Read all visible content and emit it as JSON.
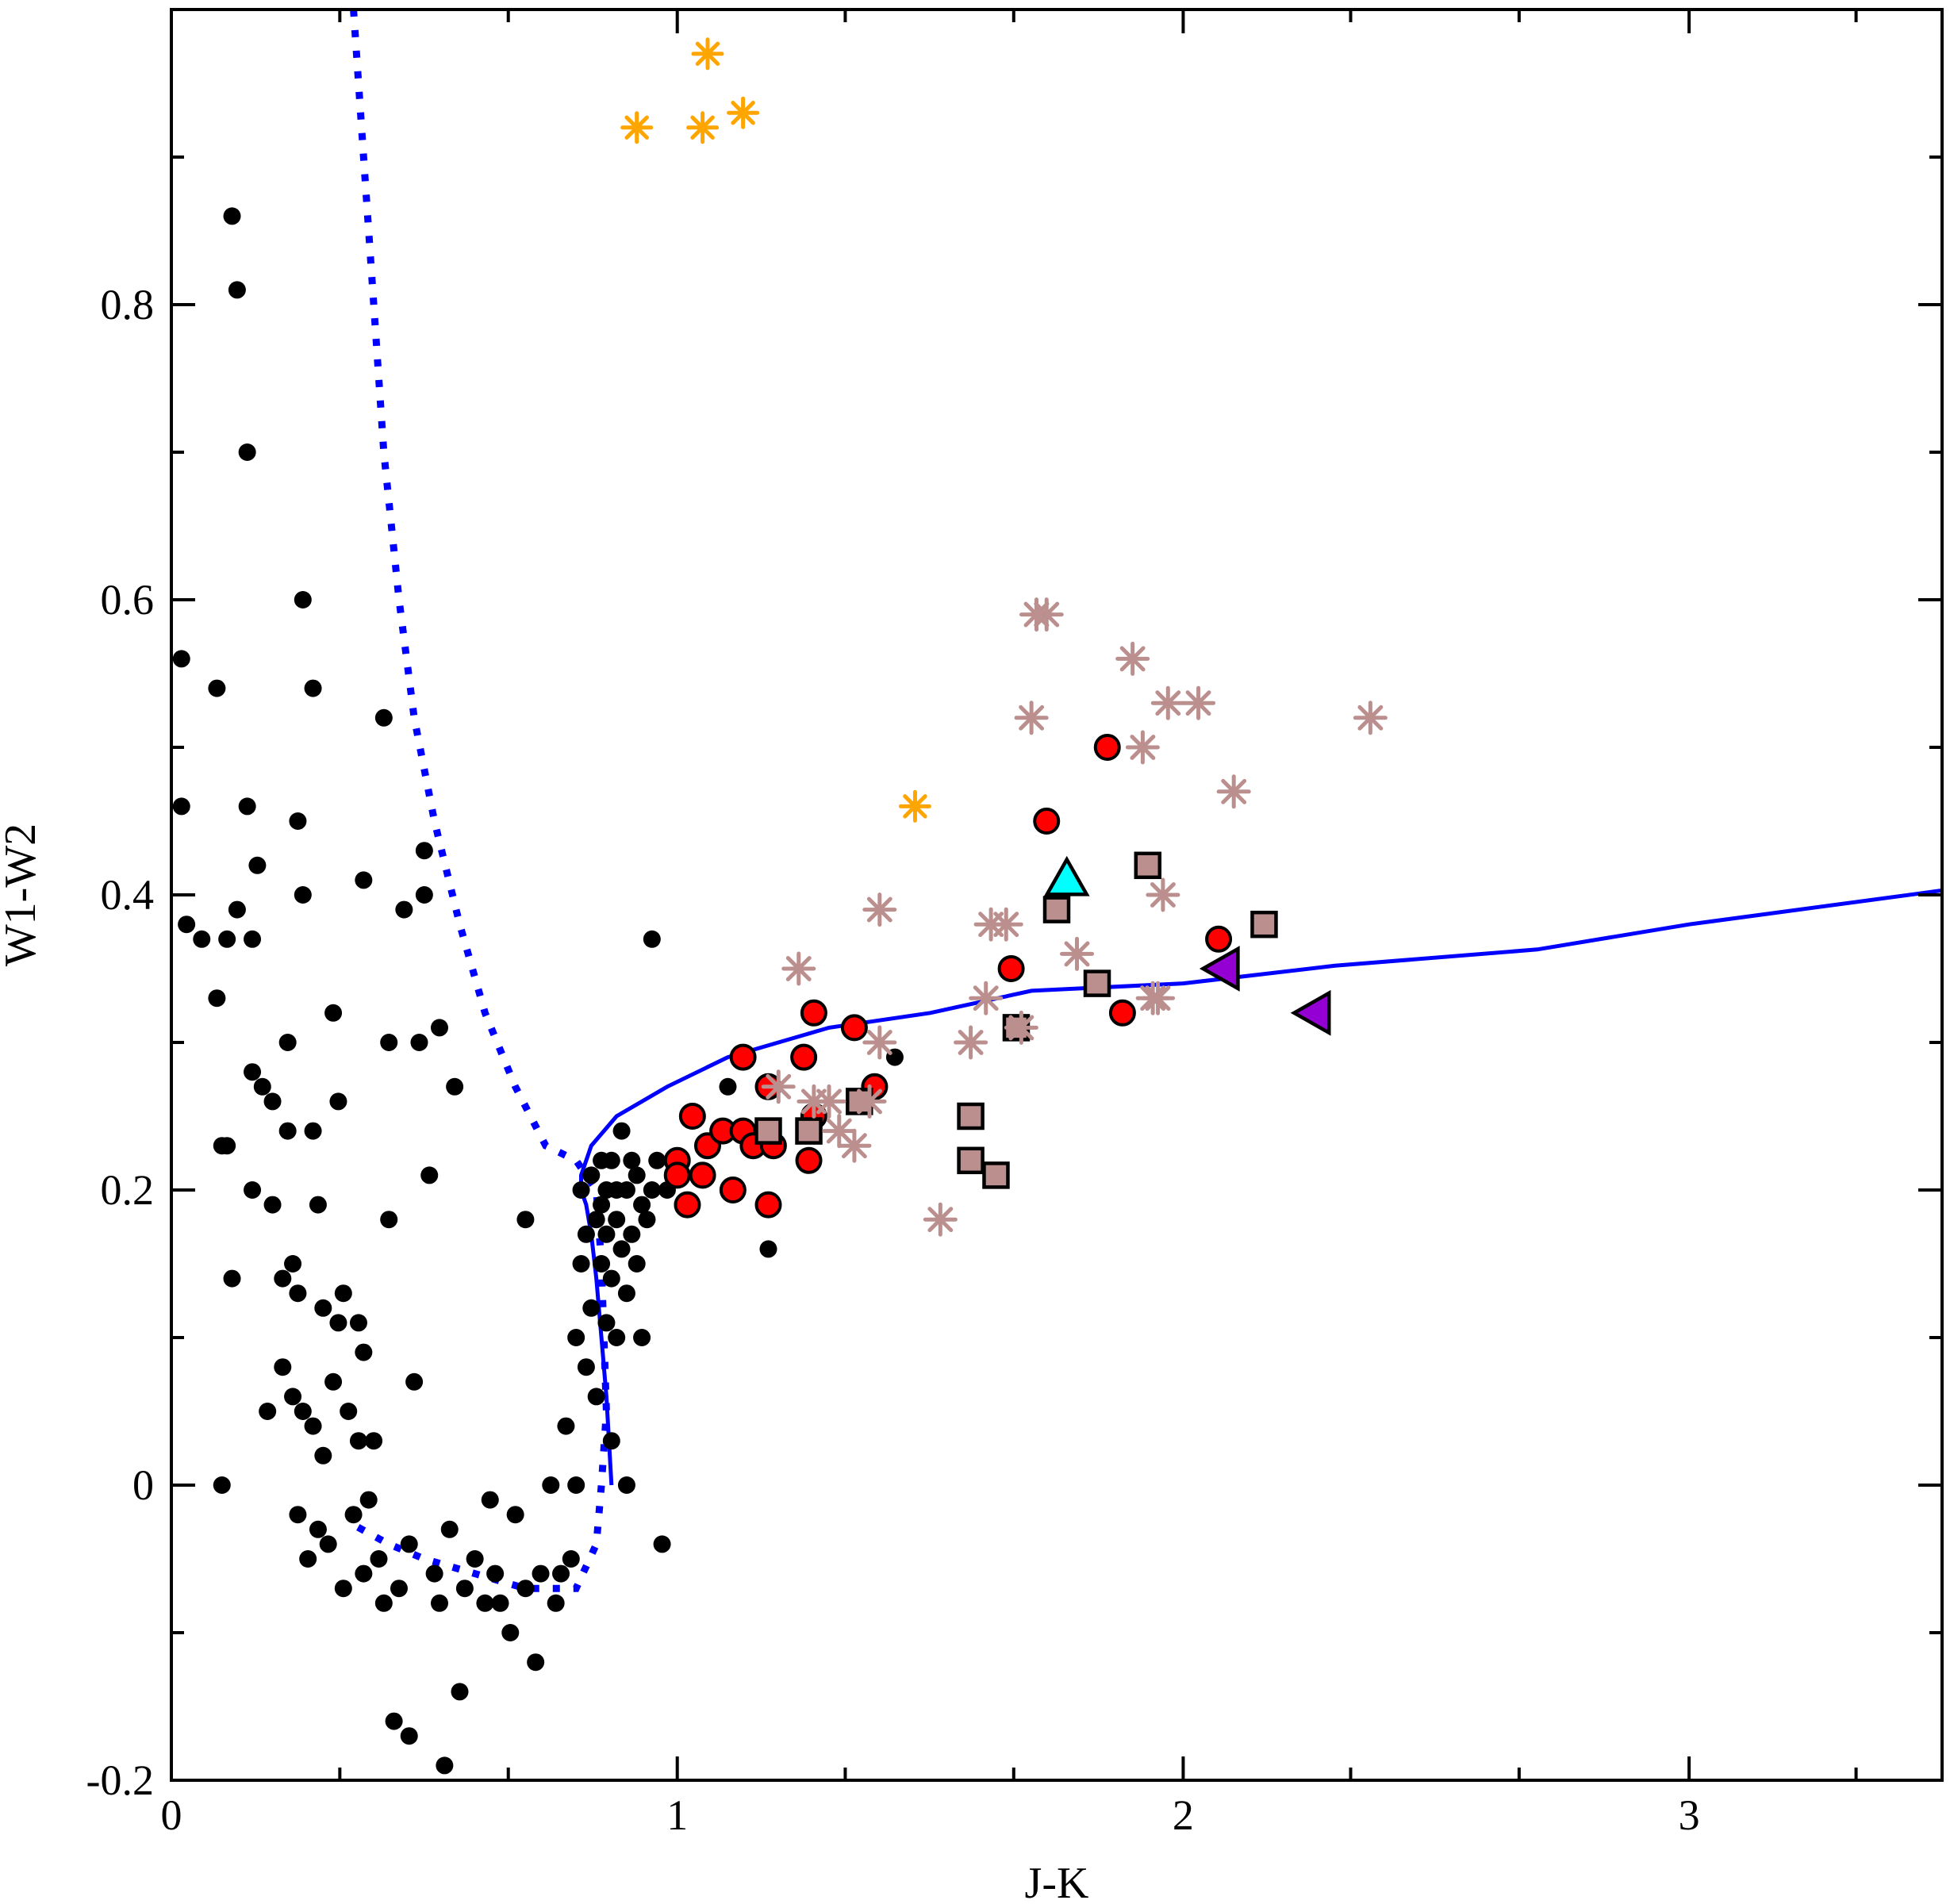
{
  "chart_data": {
    "type": "scatter",
    "title": "",
    "xlabel": "J-K",
    "ylabel": "W1-W2",
    "xlim": [
      0,
      3.5
    ],
    "ylim": [
      -0.2,
      1.0
    ],
    "x_ticks": [
      0,
      1,
      2,
      3
    ],
    "x_tick_labels": [
      "0",
      "1",
      "2",
      "3"
    ],
    "x_minor_step": 0.333,
    "y_ticks": [
      -0.2,
      0,
      0.2,
      0.4,
      0.6,
      0.8
    ],
    "y_tick_labels": [
      "-0.2",
      "0",
      "0.2",
      "0.4",
      "0.6",
      "0.8"
    ],
    "y_minor_step": 0.1,
    "grid": false,
    "legend": "none",
    "colors": {
      "dots": "#000000",
      "red_circles": "#ff0000",
      "brown_squares": "#bc8f8f",
      "brown_stars": "#bc8f8f",
      "orange_stars": "#ffa500",
      "cyan_triangle": "#00ffff",
      "purple_triangles": "#9400d3",
      "curves": "#0000ff"
    },
    "series": [
      {
        "name": "dots",
        "marker": "filled-circle",
        "points": [
          [
            0.02,
            0.46
          ],
          [
            0.02,
            0.56
          ],
          [
            0.03,
            0.38
          ],
          [
            0.06,
            0.37
          ],
          [
            0.09,
            0.54
          ],
          [
            0.09,
            0.33
          ],
          [
            0.1,
            0.23
          ],
          [
            0.1,
            0.0
          ],
          [
            0.11,
            0.23
          ],
          [
            0.11,
            0.37
          ],
          [
            0.12,
            0.14
          ],
          [
            0.12,
            0.86
          ],
          [
            0.13,
            0.81
          ],
          [
            0.13,
            0.39
          ],
          [
            0.15,
            0.7
          ],
          [
            0.15,
            0.46
          ],
          [
            0.16,
            0.37
          ],
          [
            0.16,
            0.28
          ],
          [
            0.16,
            0.2
          ],
          [
            0.17,
            0.42
          ],
          [
            0.18,
            0.27
          ],
          [
            0.19,
            0.05
          ],
          [
            0.2,
            0.26
          ],
          [
            0.2,
            0.19
          ],
          [
            0.22,
            0.14
          ],
          [
            0.22,
            0.08
          ],
          [
            0.23,
            0.3
          ],
          [
            0.23,
            0.24
          ],
          [
            0.24,
            0.15
          ],
          [
            0.24,
            0.06
          ],
          [
            0.25,
            0.45
          ],
          [
            0.25,
            0.13
          ],
          [
            0.25,
            -0.02
          ],
          [
            0.26,
            0.6
          ],
          [
            0.26,
            0.4
          ],
          [
            0.26,
            0.05
          ],
          [
            0.27,
            -0.05
          ],
          [
            0.28,
            0.54
          ],
          [
            0.28,
            0.24
          ],
          [
            0.28,
            0.04
          ],
          [
            0.29,
            0.19
          ],
          [
            0.29,
            -0.03
          ],
          [
            0.3,
            0.12
          ],
          [
            0.3,
            0.02
          ],
          [
            0.31,
            -0.04
          ],
          [
            0.32,
            0.32
          ],
          [
            0.32,
            0.07
          ],
          [
            0.33,
            0.26
          ],
          [
            0.33,
            0.11
          ],
          [
            0.34,
            0.13
          ],
          [
            0.34,
            -0.07
          ],
          [
            0.35,
            0.05
          ],
          [
            0.36,
            -0.02
          ],
          [
            0.37,
            0.11
          ],
          [
            0.37,
            0.03
          ],
          [
            0.38,
            0.41
          ],
          [
            0.38,
            0.09
          ],
          [
            0.38,
            -0.06
          ],
          [
            0.39,
            -0.01
          ],
          [
            0.4,
            0.03
          ],
          [
            0.41,
            -0.05
          ],
          [
            0.42,
            0.52
          ],
          [
            0.42,
            -0.08
          ],
          [
            0.43,
            0.18
          ],
          [
            0.43,
            0.3
          ],
          [
            0.44,
            -0.16
          ],
          [
            0.45,
            -0.07
          ],
          [
            0.46,
            0.39
          ],
          [
            0.47,
            -0.17
          ],
          [
            0.47,
            -0.04
          ],
          [
            0.48,
            0.07
          ],
          [
            0.49,
            0.3
          ],
          [
            0.5,
            0.43
          ],
          [
            0.5,
            0.4
          ],
          [
            0.51,
            0.21
          ],
          [
            0.52,
            -0.06
          ],
          [
            0.53,
            0.31
          ],
          [
            0.53,
            -0.08
          ],
          [
            0.54,
            -0.19
          ],
          [
            0.55,
            -0.03
          ],
          [
            0.56,
            0.27
          ],
          [
            0.57,
            -0.14
          ],
          [
            0.58,
            -0.07
          ],
          [
            0.6,
            -0.05
          ],
          [
            0.62,
            -0.08
          ],
          [
            0.63,
            -0.01
          ],
          [
            0.64,
            -0.06
          ],
          [
            0.65,
            -0.08
          ],
          [
            0.67,
            -0.1
          ],
          [
            0.68,
            -0.02
          ],
          [
            0.7,
            0.18
          ],
          [
            0.7,
            -0.07
          ],
          [
            0.72,
            -0.12
          ],
          [
            0.73,
            -0.06
          ],
          [
            0.75,
            0.0
          ],
          [
            0.76,
            -0.08
          ],
          [
            0.77,
            -0.06
          ],
          [
            0.78,
            0.04
          ],
          [
            0.79,
            -0.05
          ],
          [
            0.8,
            0.0
          ],
          [
            0.8,
            0.1
          ],
          [
            0.81,
            0.15
          ],
          [
            0.81,
            0.2
          ],
          [
            0.82,
            0.08
          ],
          [
            0.82,
            0.17
          ],
          [
            0.83,
            0.12
          ],
          [
            0.83,
            0.21
          ],
          [
            0.84,
            0.18
          ],
          [
            0.84,
            0.06
          ],
          [
            0.85,
            0.15
          ],
          [
            0.85,
            0.19
          ],
          [
            0.85,
            0.22
          ],
          [
            0.86,
            0.11
          ],
          [
            0.86,
            0.17
          ],
          [
            0.86,
            0.2
          ],
          [
            0.87,
            0.03
          ],
          [
            0.87,
            0.14
          ],
          [
            0.87,
            0.22
          ],
          [
            0.88,
            0.18
          ],
          [
            0.88,
            0.1
          ],
          [
            0.88,
            0.2
          ],
          [
            0.89,
            0.16
          ],
          [
            0.89,
            0.24
          ],
          [
            0.9,
            0.13
          ],
          [
            0.9,
            0.2
          ],
          [
            0.9,
            0.0
          ],
          [
            0.91,
            0.17
          ],
          [
            0.91,
            0.22
          ],
          [
            0.92,
            0.15
          ],
          [
            0.92,
            0.21
          ],
          [
            0.93,
            0.19
          ],
          [
            0.93,
            0.1
          ],
          [
            0.94,
            0.18
          ],
          [
            0.95,
            0.2
          ],
          [
            0.95,
            0.37
          ],
          [
            0.96,
            0.22
          ],
          [
            0.97,
            -0.04
          ],
          [
            0.98,
            0.2
          ],
          [
            1.1,
            0.27
          ],
          [
            1.18,
            0.16
          ],
          [
            1.43,
            0.29
          ]
        ]
      },
      {
        "name": "red_circles",
        "marker": "circle-outlined",
        "points": [
          [
            1.0,
            0.22
          ],
          [
            1.0,
            0.21
          ],
          [
            1.02,
            0.19
          ],
          [
            1.03,
            0.25
          ],
          [
            1.05,
            0.21
          ],
          [
            1.06,
            0.23
          ],
          [
            1.09,
            0.24
          ],
          [
            1.11,
            0.2
          ],
          [
            1.13,
            0.29
          ],
          [
            1.13,
            0.24
          ],
          [
            1.15,
            0.23
          ],
          [
            1.18,
            0.27
          ],
          [
            1.18,
            0.19
          ],
          [
            1.19,
            0.23
          ],
          [
            1.25,
            0.29
          ],
          [
            1.26,
            0.22
          ],
          [
            1.27,
            0.25
          ],
          [
            1.27,
            0.32
          ],
          [
            1.35,
            0.31
          ],
          [
            1.39,
            0.27
          ],
          [
            1.66,
            0.35
          ],
          [
            1.73,
            0.45
          ],
          [
            1.85,
            0.5
          ],
          [
            1.88,
            0.32
          ],
          [
            2.07,
            0.37
          ]
        ]
      },
      {
        "name": "brown_squares",
        "marker": "square-outlined",
        "points": [
          [
            1.18,
            0.24
          ],
          [
            1.26,
            0.24
          ],
          [
            1.36,
            0.26
          ],
          [
            1.58,
            0.25
          ],
          [
            1.58,
            0.22
          ],
          [
            1.63,
            0.21
          ],
          [
            1.67,
            0.31
          ],
          [
            1.75,
            0.39
          ],
          [
            1.83,
            0.34
          ],
          [
            1.93,
            0.42
          ],
          [
            2.16,
            0.38
          ]
        ]
      },
      {
        "name": "brown_stars",
        "marker": "asterisk",
        "points": [
          [
            1.2,
            0.27
          ],
          [
            1.24,
            0.35
          ],
          [
            1.27,
            0.26
          ],
          [
            1.3,
            0.26
          ],
          [
            1.32,
            0.24
          ],
          [
            1.35,
            0.23
          ],
          [
            1.38,
            0.26
          ],
          [
            1.4,
            0.39
          ],
          [
            1.4,
            0.3
          ],
          [
            1.52,
            0.18
          ],
          [
            1.58,
            0.3
          ],
          [
            1.61,
            0.33
          ],
          [
            1.62,
            0.38
          ],
          [
            1.65,
            0.38
          ],
          [
            1.68,
            0.31
          ],
          [
            1.7,
            0.52
          ],
          [
            1.71,
            0.59
          ],
          [
            1.73,
            0.59
          ],
          [
            1.79,
            0.36
          ],
          [
            1.9,
            0.56
          ],
          [
            1.92,
            0.5
          ],
          [
            1.94,
            0.33
          ],
          [
            1.95,
            0.33
          ],
          [
            1.96,
            0.4
          ],
          [
            1.97,
            0.53
          ],
          [
            2.03,
            0.53
          ],
          [
            2.1,
            0.47
          ],
          [
            2.37,
            0.52
          ]
        ]
      },
      {
        "name": "orange_stars",
        "marker": "asterisk",
        "points": [
          [
            0.92,
            0.92
          ],
          [
            1.05,
            0.92
          ],
          [
            1.06,
            0.97
          ],
          [
            1.13,
            0.93
          ],
          [
            1.47,
            0.46
          ]
        ]
      },
      {
        "name": "cyan_triangle",
        "marker": "triangle-up",
        "points": [
          [
            1.77,
            0.41
          ]
        ]
      },
      {
        "name": "purple_triangles",
        "marker": "triangle-left",
        "points": [
          [
            2.08,
            0.35
          ],
          [
            2.26,
            0.32
          ]
        ]
      }
    ],
    "lines": [
      {
        "name": "solid-curve",
        "style": "solid",
        "points": [
          [
            0.87,
            0.0
          ],
          [
            0.86,
            0.06
          ],
          [
            0.85,
            0.1
          ],
          [
            0.84,
            0.14
          ],
          [
            0.83,
            0.17
          ],
          [
            0.82,
            0.19
          ],
          [
            0.81,
            0.2
          ],
          [
            0.81,
            0.21
          ],
          [
            0.83,
            0.23
          ],
          [
            0.88,
            0.25
          ],
          [
            0.98,
            0.27
          ],
          [
            1.1,
            0.29
          ],
          [
            1.3,
            0.31
          ],
          [
            1.5,
            0.32
          ],
          [
            1.7,
            0.335
          ],
          [
            2.0,
            0.34
          ],
          [
            2.3,
            0.352
          ],
          [
            2.7,
            0.363
          ],
          [
            3.0,
            0.38
          ],
          [
            3.5,
            0.403
          ]
        ]
      },
      {
        "name": "dotted-curve",
        "style": "dotted",
        "points": [
          [
            0.36,
            1.0
          ],
          [
            0.38,
            0.9
          ],
          [
            0.4,
            0.8
          ],
          [
            0.42,
            0.7
          ],
          [
            0.45,
            0.6
          ],
          [
            0.48,
            0.52
          ],
          [
            0.52,
            0.45
          ],
          [
            0.57,
            0.38
          ],
          [
            0.62,
            0.32
          ],
          [
            0.68,
            0.27
          ],
          [
            0.74,
            0.23
          ],
          [
            0.8,
            0.22
          ],
          [
            0.84,
            0.2
          ],
          [
            0.85,
            0.15
          ],
          [
            0.86,
            0.05
          ],
          [
            0.85,
            0.0
          ],
          [
            0.84,
            -0.04
          ],
          [
            0.8,
            -0.07
          ],
          [
            0.7,
            -0.07
          ],
          [
            0.6,
            -0.06
          ],
          [
            0.5,
            -0.05
          ],
          [
            0.43,
            -0.04
          ],
          [
            0.35,
            -0.025
          ]
        ]
      }
    ]
  }
}
